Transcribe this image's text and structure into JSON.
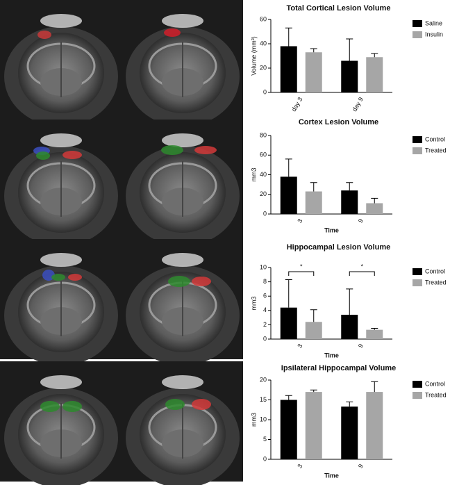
{
  "chart_data": [
    {
      "type": "bar",
      "title": "Total Cortical Lesion Volume",
      "ylabel": "Volume (mm³)",
      "categories": [
        "day 3",
        "day 9"
      ],
      "ylim": [
        0,
        60
      ],
      "yticks": [
        0,
        20,
        40,
        60
      ],
      "series": [
        {
          "name": "Saline",
          "color": "#000000",
          "values": [
            38,
            26
          ],
          "errors": [
            15,
            18
          ]
        },
        {
          "name": "Insulin",
          "color": "#a6a6a6",
          "values": [
            33,
            29
          ],
          "errors": [
            3,
            3
          ]
        }
      ]
    },
    {
      "type": "bar",
      "title": "Cortex Lesion Volume",
      "ylabel": "mm3",
      "xlabel": "Time",
      "categories": [
        "3",
        "9"
      ],
      "ylim": [
        0,
        80
      ],
      "yticks": [
        0,
        20,
        40,
        60,
        80
      ],
      "series": [
        {
          "name": "Control",
          "color": "#000000",
          "values": [
            38,
            24
          ],
          "errors": [
            18,
            8
          ]
        },
        {
          "name": "Treated",
          "color": "#a6a6a6",
          "values": [
            23,
            11
          ],
          "errors": [
            9,
            5
          ]
        }
      ]
    },
    {
      "type": "bar",
      "title": "Hippocampal Lesion Volume",
      "ylabel": "mm3",
      "xlabel": "Time",
      "categories": [
        "3",
        "9"
      ],
      "ylim": [
        0,
        10
      ],
      "yticks": [
        0,
        2,
        4,
        6,
        8,
        10
      ],
      "annotations": [
        "*",
        "*"
      ],
      "series": [
        {
          "name": "Control",
          "color": "#000000",
          "values": [
            4.4,
            3.4
          ],
          "errors": [
            3.9,
            3.6
          ]
        },
        {
          "name": "Treated",
          "color": "#a6a6a6",
          "values": [
            2.4,
            1.3
          ],
          "errors": [
            1.7,
            0.2
          ]
        }
      ]
    },
    {
      "type": "bar",
      "title": "Ipsilateral Hippocampal Volume",
      "ylabel": "mm3",
      "xlabel": "Time",
      "categories": [
        "3",
        "9"
      ],
      "ylim": [
        0,
        20
      ],
      "yticks": [
        0,
        5,
        10,
        15,
        20
      ],
      "series": [
        {
          "name": "Control",
          "color": "#000000",
          "values": [
            15,
            13.3
          ],
          "errors": [
            1.1,
            1.2
          ]
        },
        {
          "name": "Treated",
          "color": "#a6a6a6",
          "values": [
            17,
            17
          ],
          "errors": [
            0.5,
            2.6
          ]
        }
      ]
    }
  ]
}
